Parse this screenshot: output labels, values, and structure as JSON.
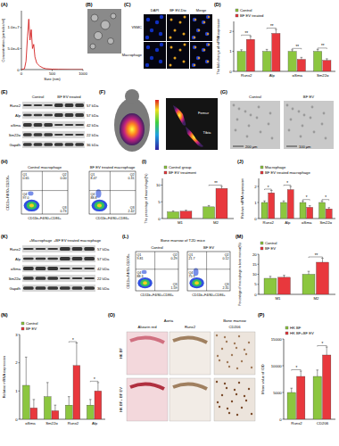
{
  "panel_labels": [
    "(A)",
    "(B)",
    "(C)",
    "(D)",
    "(E)",
    "(F)",
    "(G)",
    "(H)",
    "(I)",
    "(J)",
    "(K)",
    "(L)",
    "(M)",
    "(N)",
    "(O)",
    "(P)"
  ],
  "chart_data": [
    {
      "type": "line",
      "x_label": "Size (nm)",
      "y_label": "Concentration (particles/ml)",
      "x": [
        0,
        50,
        75,
        100,
        120,
        140,
        160,
        180,
        200,
        220,
        250,
        300,
        350,
        400,
        500,
        600,
        800,
        1000
      ],
      "values": [
        0,
        200000,
        2000000,
        8000000,
        12000000,
        7000000,
        9500000,
        5000000,
        6000000,
        3000000,
        1500000,
        800000,
        400000,
        200000,
        100000,
        50000,
        0,
        0
      ],
      "color": "#d42020",
      "xlim": [
        0,
        1000
      ],
      "xticks": [
        0,
        500,
        1000
      ],
      "ylim": [
        0,
        14000000
      ],
      "yticks": [
        0,
        {
          "value": 5000000,
          "label": "5.0e+6"
        },
        {
          "value": 10000000,
          "label": "1.0e+7"
        }
      ]
    },
    {
      "type": "bar",
      "y_label": "The fold change of mRNA expression",
      "categories": [
        "Runx2",
        "Alp",
        "αSma",
        "Sm22α"
      ],
      "series": [
        {
          "name": "Control",
          "color": "#8cc63f",
          "values": [
            1,
            1,
            1,
            1
          ],
          "errors": [
            0.08,
            0.1,
            0.08,
            0.1
          ]
        },
        {
          "name": "BF EV treated",
          "color": "#e8383d",
          "values": [
            1.6,
            1.9,
            0.6,
            0.55
          ],
          "errors": [
            0.15,
            0.2,
            0.1,
            0.08
          ]
        }
      ],
      "ylim": [
        0,
        2.5
      ],
      "yticks": [
        0,
        1,
        2
      ],
      "legend": "top",
      "annotations": [
        {
          "x": "Runx2",
          "text": "**"
        },
        {
          "x": "Alp",
          "text": "**"
        },
        {
          "x": "αSma",
          "text": "**"
        },
        {
          "x": "Sm22α",
          "text": "**"
        }
      ]
    },
    {
      "type": "bar",
      "y_label": "The percentage of macrophage(%)",
      "categories": [
        "M1",
        "M2"
      ],
      "series": [
        {
          "name": "Control group",
          "color": "#8cc63f",
          "values": [
            2,
            3.5
          ],
          "errors": [
            0.3,
            0.4
          ]
        },
        {
          "name": "BF EV treatment",
          "color": "#e8383d",
          "values": [
            2.2,
            9
          ],
          "errors": [
            0.3,
            0.6
          ]
        }
      ],
      "ylim": [
        0,
        12
      ],
      "yticks": [
        0,
        5,
        10
      ],
      "legend": "top",
      "annotations": [
        {
          "x": "M2",
          "text": "**"
        }
      ]
    },
    {
      "type": "bar",
      "y_label": "Relative mRNA expression",
      "categories": [
        "Runx2",
        "Alp",
        "αSma",
        "Sm22α"
      ],
      "series": [
        {
          "name": "Macrophage",
          "color": "#8cc63f",
          "values": [
            1,
            1,
            1,
            1
          ],
          "errors": [
            0.1,
            0.1,
            0.1,
            0.1
          ]
        },
        {
          "name": "BF EV treated macrophage",
          "color": "#e8383d",
          "values": [
            1.6,
            1.8,
            0.7,
            0.6
          ],
          "errors": [
            0.15,
            0.2,
            0.1,
            0.08
          ]
        }
      ],
      "ylim": [
        0,
        2.5
      ],
      "yticks": [
        0,
        1,
        2
      ],
      "legend": "top",
      "annotations": [
        {
          "x": "Runx2",
          "text": "*"
        },
        {
          "x": "Alp",
          "text": "*"
        },
        {
          "x": "αSma",
          "text": "*"
        },
        {
          "x": "Sm22α",
          "text": "*"
        }
      ]
    },
    {
      "type": "bar",
      "y_label": "Percentage of macrophage in bone marrow(%)",
      "categories": [
        "M1",
        "M2"
      ],
      "series": [
        {
          "name": "Control",
          "color": "#8cc63f",
          "values": [
            8,
            10
          ],
          "errors": [
            1,
            1.5
          ]
        },
        {
          "name": "BF EV",
          "color": "#e8383d",
          "values": [
            8.5,
            16
          ],
          "errors": [
            1,
            2
          ]
        }
      ],
      "ylim": [
        0,
        20
      ],
      "yticks": [
        0,
        5,
        10,
        15,
        20
      ],
      "legend": "top",
      "annotations": [
        {
          "x": "M2",
          "text": "**"
        }
      ]
    },
    {
      "type": "bar",
      "y_label": "Relative mRNA expression",
      "categories": [
        "αSma",
        "Sm22α",
        "Runx2",
        "Alp"
      ],
      "series": [
        {
          "name": "Control",
          "color": "#8cc63f",
          "values": [
            1.2,
            0.8,
            0.5,
            0.5
          ],
          "errors": [
            1,
            0.5,
            0.3,
            0.2
          ]
        },
        {
          "name": "BF EV",
          "color": "#e8383d",
          "values": [
            0.4,
            0.3,
            1.9,
            1
          ],
          "errors": [
            0.3,
            0.2,
            0.8,
            0.3
          ]
        }
      ],
      "ylim": [
        0,
        3
      ],
      "yticks": [
        0,
        1,
        2,
        3
      ],
      "legend": "top",
      "annotations": [
        {
          "x": "Runx2",
          "text": "*"
        },
        {
          "x": "Alp",
          "text": "*"
        }
      ]
    },
    {
      "type": "bar",
      "y_label": "Mean value of IOD",
      "categories": [
        "Runx2",
        "CD206"
      ],
      "series": [
        {
          "name": "HK BF",
          "color": "#8cc63f",
          "values": [
            5000,
            8000
          ],
          "errors": [
            800,
            1200
          ]
        },
        {
          "name": "HK BF+BF EV",
          "color": "#e8383d",
          "values": [
            8000,
            12000
          ],
          "errors": [
            1000,
            1500
          ]
        }
      ],
      "ylim": [
        0,
        15000
      ],
      "yticks": [
        0,
        5000,
        10000,
        15000
      ],
      "legend": "top",
      "annotations": [
        {
          "x": "Runx2",
          "text": "*"
        },
        {
          "x": "CD206",
          "text": "*"
        }
      ]
    }
  ],
  "image_C": {
    "columns": [
      "DAPI",
      "BF EV-Dio",
      "Merge"
    ],
    "rows": [
      "VSMC",
      "Macrophage"
    ]
  },
  "blot_E": {
    "columns": [
      "Control",
      "BF EV treated"
    ],
    "rows": [
      {
        "protein": "Runx2",
        "size": "57 kDa"
      },
      {
        "protein": "Alp",
        "size": "57 kDa"
      },
      {
        "protein": "αSma",
        "size": "42 kDa"
      },
      {
        "protein": "Sm22α",
        "size": "22 kDa"
      },
      {
        "protein": "Gapdh",
        "size": "36 kDa"
      }
    ]
  },
  "image_F": {
    "labels": [
      "Femur",
      "Tibia"
    ]
  },
  "image_G": {
    "columns": [
      "Control",
      "BF EV"
    ],
    "scale_bars": [
      "200 μm",
      "100 μm"
    ]
  },
  "flow_H": {
    "x_label": "CD11b+F4/80+CD86+",
    "y_label": "CD11b+F4/80+CD206+",
    "plots": [
      {
        "title": "Control macrophage",
        "quadrants": [
          {
            "name": "Q1",
            "value": "0.65"
          },
          {
            "name": "Q2",
            "value": "0.00"
          },
          {
            "name": "Q3",
            "value": "0.73"
          },
          {
            "name": "Q4",
            "value": "97.0"
          }
        ]
      },
      {
        "title": "BF EV treated macrophage",
        "quadrants": [
          {
            "name": "Q1",
            "value": "8.47"
          },
          {
            "name": "Q2",
            "value": "0.31"
          },
          {
            "name": "Q3",
            "value": "2.42"
          },
          {
            "name": "Q4",
            "value": "88.8"
          }
        ]
      }
    ]
  },
  "blot_K": {
    "columns": [
      "+Macrophage",
      "+BF EV treated macrophage"
    ],
    "rows": [
      {
        "protein": "Runx2",
        "size": "57 kDa"
      },
      {
        "protein": "Alp",
        "size": "57 kDa"
      },
      {
        "protein": "αSma",
        "size": "42 kDa"
      },
      {
        "protein": "Sm22α",
        "size": "22 kDa"
      },
      {
        "protein": "Gapdh",
        "size": "36 kDa"
      }
    ]
  },
  "flow_L": {
    "title": "Bone marrow of T2D mice",
    "x_label": "CD11b+F4/80+CD86+",
    "y_label": "CD11b+F4/80+CD206+",
    "plots": [
      {
        "title": "Control",
        "quadrants": [
          {
            "name": "Q1",
            "value": "9.81"
          },
          {
            "name": "Q2",
            "value": "0.29"
          },
          {
            "name": "Q3",
            "value": "1.59"
          },
          {
            "name": "Q4",
            "value": "88.3"
          }
        ]
      },
      {
        "title": "BF EV",
        "quadrants": [
          {
            "name": "Q1",
            "value": "21.7"
          },
          {
            "name": "Q2",
            "value": "0.12"
          },
          {
            "name": "Q3",
            "value": "2.31"
          },
          {
            "name": "Q4",
            "value": "75.9"
          }
        ]
      }
    ]
  },
  "image_O": {
    "groups": [
      {
        "title": "Aorta",
        "columns": [
          "Alizarin red",
          "Runx2"
        ]
      },
      {
        "title": "Bone marrow",
        "columns": [
          "CD206"
        ]
      }
    ],
    "rows": [
      "HK BF",
      "HK BF+ BF EV"
    ]
  }
}
